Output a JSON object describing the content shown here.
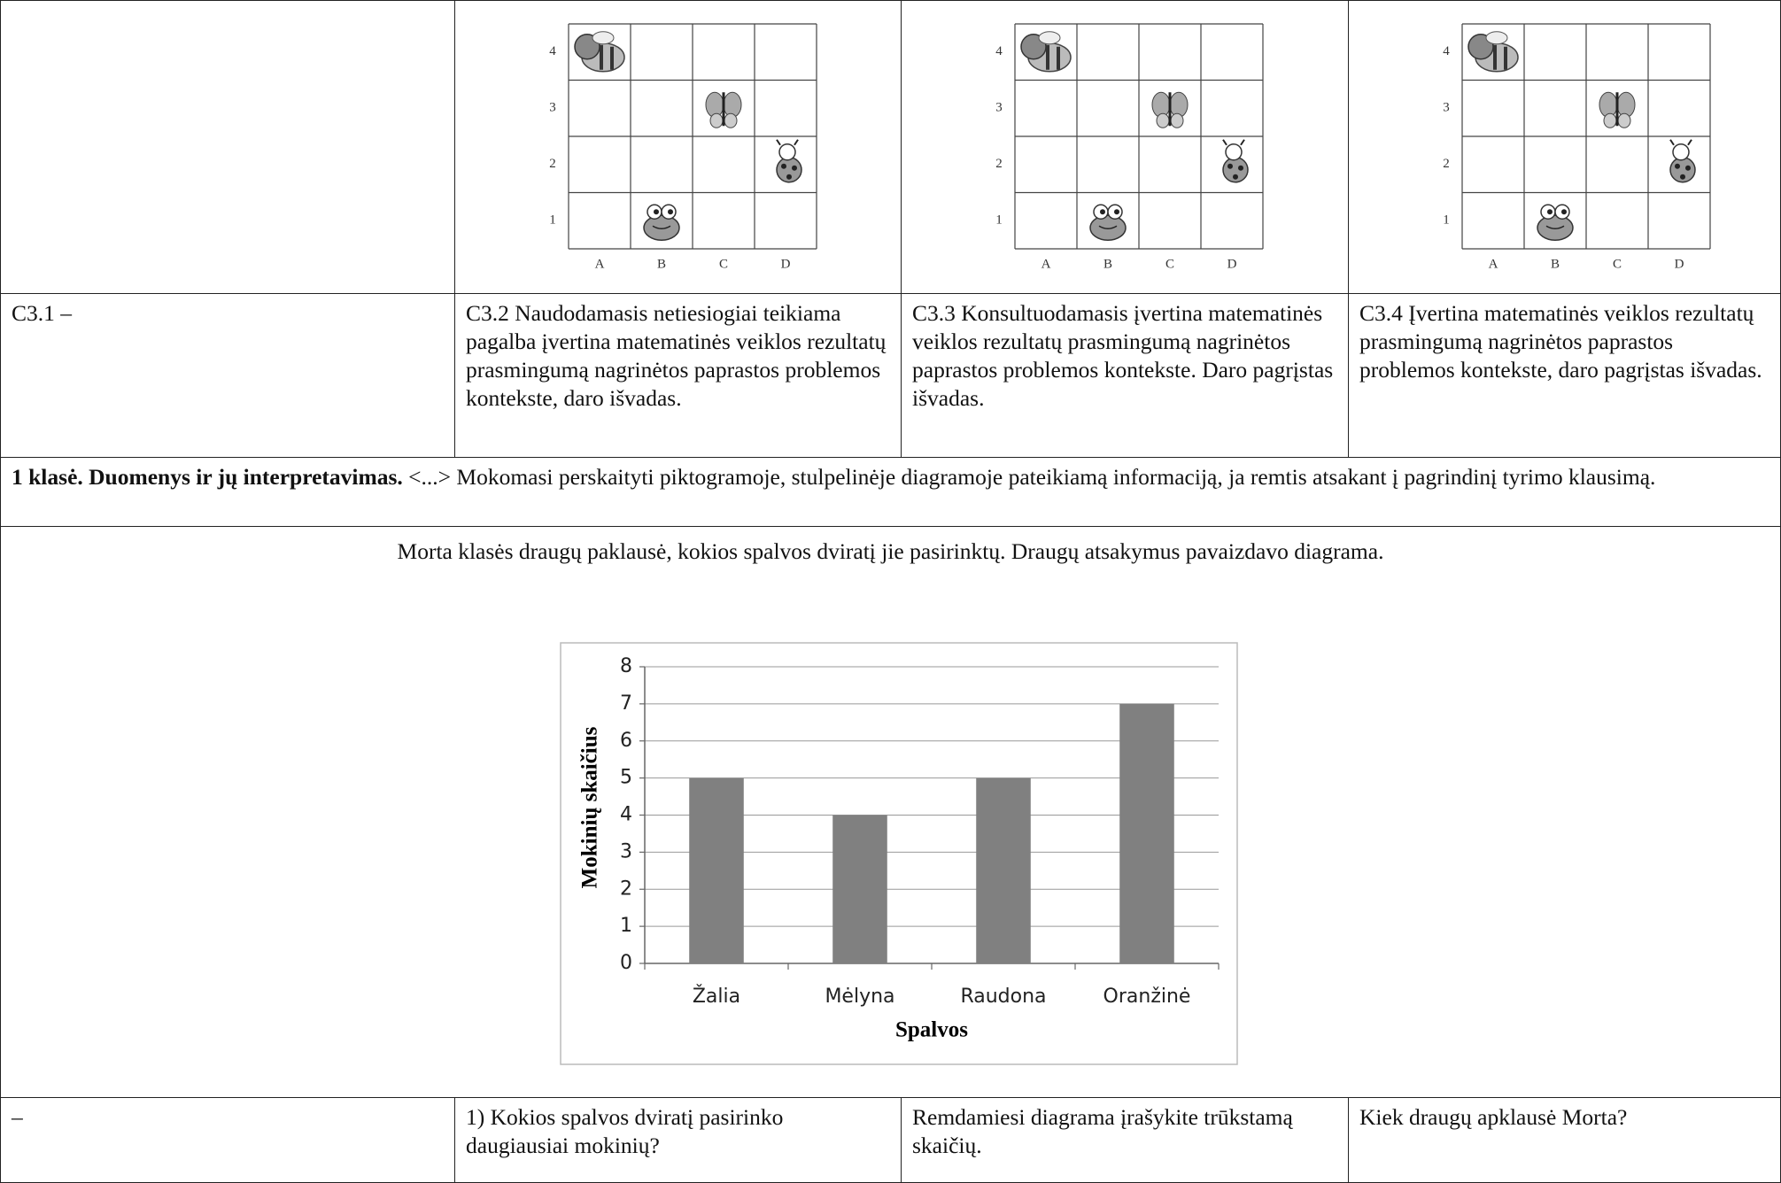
{
  "table": {
    "grids": [
      {
        "rows": [
          "4",
          "3",
          "2",
          "1"
        ],
        "cols": [
          "A",
          "B",
          "C",
          "D"
        ]
      },
      {
        "rows": [
          "4",
          "3",
          "2",
          "1"
        ],
        "cols": [
          "A",
          "B",
          "C",
          "D"
        ]
      },
      {
        "rows": [
          "4",
          "3",
          "2",
          "1"
        ],
        "cols": [
          "A",
          "B",
          "C",
          "D"
        ]
      }
    ],
    "levels": [
      "C3.1 –",
      "C3.2 Naudodamasis netiesiogiai teikiama pagalba įvertina matematinės veiklos rezultatų prasmingumą nagrinėtos paprastos problemos kontekste, daro išvadas.",
      "C3.3 Konsultuodamasis įvertina matematinės veiklos rezultatų prasmingumą nagrinėtos paprastos problemos kontekste. Daro pagrįstas išvadas.",
      "C3.4 Įvertina matematinės veiklos rezultatų prasmingumą nagrinėtos paprastos problemos kontekste, daro pagrįstas išvadas."
    ],
    "section": {
      "heading": "1 klasė. Duomenys ir jų interpretavimas.",
      "text": " <...> Mokomasi perskaityti piktogramoje, stulpelinėje diagramoje pateikiamą informaciją, ja remtis atsakant į pagrindinį tyrimo klausimą."
    },
    "task": "Morta klasės draugų paklausė, kokios spalvos dviratį jie pasirinktų. Draugų atsakymus pavaizdavo diagrama.",
    "questions": [
      "–",
      "1) Kokios spalvos dviratį pasirinko daugiausiai mokinių?",
      "Remdamiesi diagrama įrašykite trūkstamą skaičių.",
      "Kiek draugų apklausė Morta?"
    ]
  },
  "chart_data": {
    "type": "bar",
    "categories": [
      "Žalia",
      "Mėlyna",
      "Raudona",
      "Oranžinė"
    ],
    "values": [
      5,
      4,
      5,
      7
    ],
    "color": "#808080",
    "ylim": [
      0,
      8
    ],
    "yticks": [
      0,
      1,
      2,
      3,
      4,
      5,
      6,
      7,
      8
    ],
    "grid": true,
    "y_label": "Mokinių skaičius",
    "x_label": "Spalvos"
  }
}
